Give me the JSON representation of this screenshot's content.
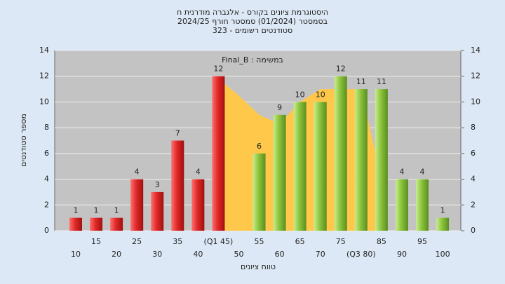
{
  "chart_data": {
    "type": "bar",
    "title": "היסטוגרמת ציונים בקורס - אלגברה מודרנית ח",
    "subtitle": "בסמסטר (01/2024) סמסטר חורף 2024/25",
    "subtitle2": "סטודנטים רשומים - 323",
    "annotation": "במשימה : Final_B",
    "x_label": "טווח ציונים",
    "y_label": "מספר סטודנטים",
    "categories": [
      "10",
      "15",
      "20",
      "25",
      "30",
      "35",
      "40",
      "(Q1 45)",
      "50",
      "55",
      "60",
      "65",
      "70",
      "75",
      "(Q3 80)",
      "85",
      "90",
      "95",
      "100"
    ],
    "series": [
      {
        "color": "#e02828",
        "values": [
          1,
          1,
          1,
          4,
          3,
          7,
          4,
          12,
          null,
          null,
          null,
          null,
          null,
          null,
          null,
          null,
          null,
          null,
          null
        ]
      },
      {
        "color": "#8cc43c",
        "values": [
          null,
          null,
          null,
          null,
          null,
          null,
          null,
          null,
          null,
          6,
          9,
          10,
          10,
          12,
          11,
          11,
          4,
          4,
          1
        ]
      }
    ],
    "area": {
      "color": "#ffc84a",
      "values": [
        null,
        null,
        null,
        null,
        null,
        null,
        null,
        11.8,
        10.5,
        9,
        8.3,
        10,
        11,
        11,
        11,
        4,
        null,
        null,
        null
      ]
    },
    "ylim": [
      0,
      14
    ],
    "yticks": [
      0,
      2,
      4,
      6,
      8,
      10,
      12,
      14
    ],
    "y2lim": [
      0,
      14
    ],
    "y2ticks": [
      0,
      2,
      4,
      6,
      8,
      10,
      12,
      14
    ],
    "grid": true
  }
}
